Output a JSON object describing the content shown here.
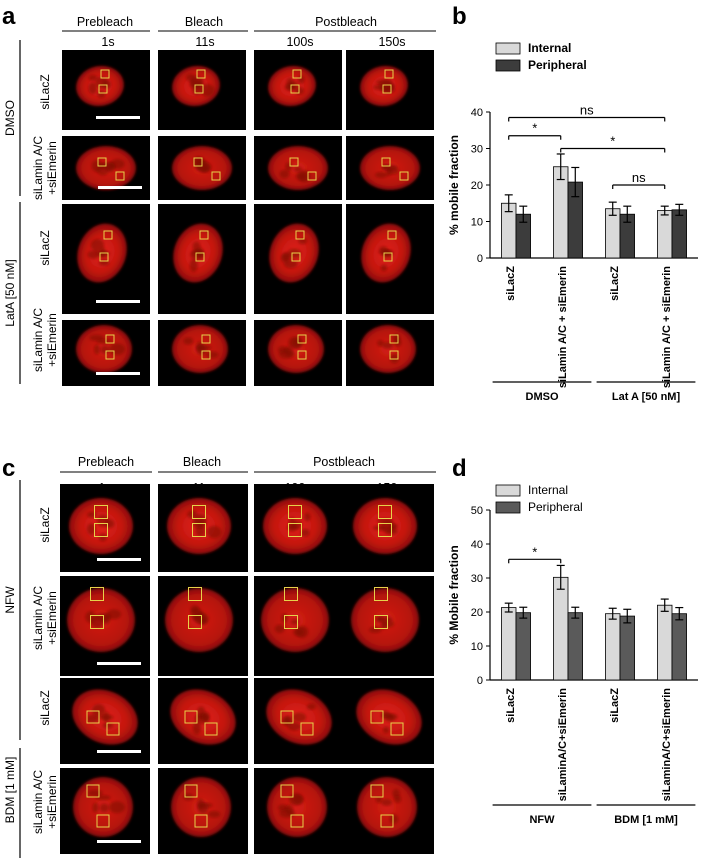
{
  "panels": {
    "a": {
      "letter": "a",
      "headers": {
        "prebleach": "Prebleach",
        "bleach": "Bleach",
        "postbleach": "Postbleach"
      },
      "times": [
        "1s",
        "11s",
        "100s",
        "150s"
      ],
      "groups": [
        "DMSO",
        "LatA [50 nM]"
      ],
      "rows": [
        {
          "line1": "siLacZ",
          "line2": ""
        },
        {
          "line1": "siLamin A/C",
          "line2": "+siEmerin"
        },
        {
          "line1": "siLacZ",
          "line2": ""
        },
        {
          "line1": "siLamin A/C",
          "line2": "+siEmerin"
        }
      ]
    },
    "c": {
      "letter": "c",
      "headers": {
        "prebleach": "Prebleach",
        "bleach": "Bleach",
        "postbleach": "Postbleach"
      },
      "times": [
        "1s",
        "11s",
        "100s",
        "150s"
      ],
      "groups": [
        "NFW",
        "BDM [1 mM]"
      ],
      "rows": [
        {
          "line1": "siLacZ",
          "line2": ""
        },
        {
          "line1": "siLamin A/C",
          "line2": "+siEmerin"
        },
        {
          "line1": "siLacZ",
          "line2": ""
        },
        {
          "line1": "siLamin A/C",
          "line2": "+siEmerin"
        }
      ]
    }
  },
  "chart_data": [
    {
      "id": "b",
      "letter": "b",
      "type": "bar",
      "ylabel": "% mobile fraction",
      "ylim": [
        0,
        40
      ],
      "yticks": [
        0,
        10,
        20,
        30,
        40
      ],
      "categories": [
        "siLacZ",
        "siLamin A/C + siEmerin",
        "siLacZ",
        "siLamin A/C + siEmerin"
      ],
      "groups": [
        {
          "label": "DMSO",
          "categories": [
            0,
            1
          ]
        },
        {
          "label": "Lat A [50 nM]",
          "categories": [
            2,
            3
          ]
        }
      ],
      "series": [
        {
          "name": "Internal",
          "color": "#d9d9d9",
          "values": [
            15.0,
            25.0,
            13.5,
            13.0
          ],
          "errors": [
            2.3,
            3.5,
            1.8,
            1.2
          ]
        },
        {
          "name": "Peripheral",
          "color": "#3c3c3c",
          "values": [
            12.0,
            20.8,
            12.0,
            13.2
          ],
          "errors": [
            2.2,
            4.0,
            2.2,
            1.5
          ]
        }
      ],
      "legend": "top-left",
      "annotations": [
        {
          "from": [
            0,
            0
          ],
          "to": [
            1,
            0
          ],
          "y": 33.5,
          "text": "*"
        },
        {
          "from": [
            0,
            0
          ],
          "to": [
            3,
            0
          ],
          "y": 38.5,
          "text": "ns"
        },
        {
          "from": [
            1,
            0
          ],
          "to": [
            3,
            0
          ],
          "y": 30.0,
          "text": "*"
        },
        {
          "from": [
            2,
            0
          ],
          "to": [
            3,
            0
          ],
          "y": 20.0,
          "text": "ns"
        }
      ]
    },
    {
      "id": "d",
      "letter": "d",
      "type": "bar",
      "ylabel": "% Mobile fraction",
      "ylim": [
        0,
        50
      ],
      "yticks": [
        0,
        10,
        20,
        30,
        40,
        50
      ],
      "categories": [
        "siLacZ",
        "siLaminA/C+siEmerin",
        "siLacZ",
        "siLaminA/C+siEmerin"
      ],
      "groups": [
        {
          "label": "NFW",
          "categories": [
            0,
            1
          ]
        },
        {
          "label": "BDM [1 mM]",
          "categories": [
            2,
            3
          ]
        }
      ],
      "series": [
        {
          "name": "Internal",
          "color": "#d9d9d9",
          "values": [
            21.3,
            30.2,
            19.5,
            22.0
          ],
          "errors": [
            1.3,
            3.5,
            1.6,
            1.8
          ]
        },
        {
          "name": "Peripheral",
          "color": "#5a5a5a",
          "values": [
            19.8,
            19.8,
            18.8,
            19.5
          ],
          "errors": [
            1.6,
            1.6,
            2.0,
            1.8
          ]
        }
      ],
      "legend": "top-left",
      "annotations": [
        {
          "from": [
            0,
            0
          ],
          "to": [
            1,
            0
          ],
          "y": 35.5,
          "text": "*"
        }
      ]
    }
  ]
}
